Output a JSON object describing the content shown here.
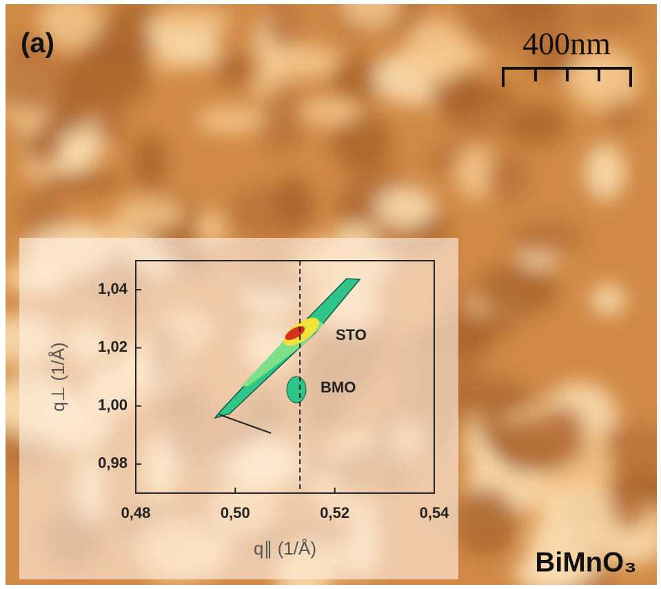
{
  "panel_label": "(a)",
  "scale_bar": "400nm",
  "material": "BiMnO₃",
  "chart_data": {
    "type": "contour",
    "x_label": "q∥ (1/Å)",
    "y_label": "q⊥ (1/Å)",
    "xlim": [
      0.48,
      0.54
    ],
    "ylim": [
      0.97,
      1.05
    ],
    "xticks": [
      {
        "value": 0.48,
        "label": "0,48"
      },
      {
        "value": 0.5,
        "label": "0,50"
      },
      {
        "value": 0.52,
        "label": "0,52"
      },
      {
        "value": 0.54,
        "label": "0,54"
      }
    ],
    "yticks": [
      {
        "value": 0.98,
        "label": "0,98"
      },
      {
        "value": 1.0,
        "label": "1,00"
      },
      {
        "value": 1.02,
        "label": "1,02"
      },
      {
        "value": 1.04,
        "label": "1,04"
      }
    ],
    "reference_line_x": 0.513,
    "annotations": [
      "STO",
      "BMO"
    ]
  }
}
